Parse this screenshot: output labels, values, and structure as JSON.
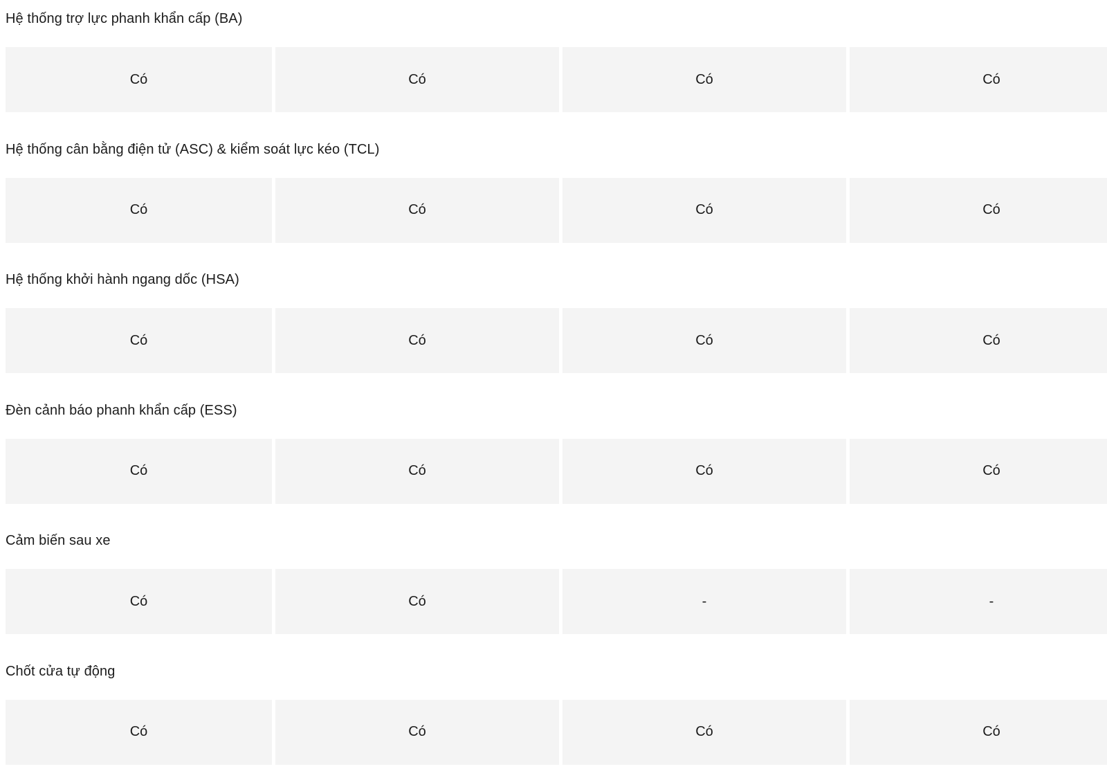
{
  "page": {
    "background_color": "#ffffff",
    "cell_background_color": "#f4f4f4",
    "text_color": "#1c1c1c"
  },
  "table": {
    "column_count": 4,
    "rows": [
      {
        "label": "Hệ thống trợ lực phanh khẩn cấp (BA)",
        "values": [
          "Có",
          "Có",
          "Có",
          "Có"
        ]
      },
      {
        "label": "Hệ thống cân bằng điện tử (ASC) & kiểm soát lực kéo (TCL)",
        "values": [
          "Có",
          "Có",
          "Có",
          "Có"
        ]
      },
      {
        "label": "Hệ thống khởi hành ngang dốc (HSA)",
        "values": [
          "Có",
          "Có",
          "Có",
          "Có"
        ]
      },
      {
        "label": "Đèn cảnh báo phanh khẩn cấp (ESS)",
        "values": [
          "Có",
          "Có",
          "Có",
          "Có"
        ]
      },
      {
        "label": "Cảm biến sau xe",
        "values": [
          "Có",
          "Có",
          "-",
          "-"
        ]
      },
      {
        "label": "Chốt cửa tự động",
        "values": [
          "Có",
          "Có",
          "Có",
          "Có"
        ]
      }
    ]
  }
}
